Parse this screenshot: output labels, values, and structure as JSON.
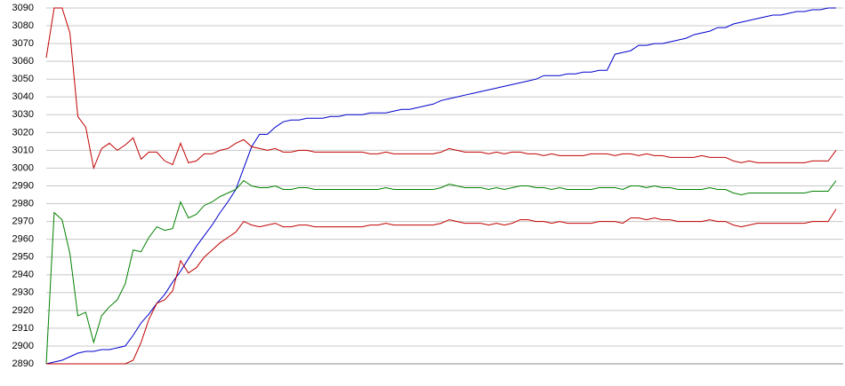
{
  "chart_data": {
    "type": "line",
    "ylim": [
      2890,
      3090
    ],
    "yticks": [
      2890,
      2900,
      2910,
      2920,
      2930,
      2940,
      2950,
      2960,
      2970,
      2980,
      2990,
      3000,
      3010,
      3020,
      3030,
      3040,
      3050,
      3060,
      3070,
      3080,
      3090
    ],
    "grid": true,
    "series": [
      {
        "color": "#0000cc",
        "values": [
          2890,
          2891,
          2892,
          2894,
          2896,
          2897,
          2897,
          2898,
          2898,
          2899,
          2900,
          2906,
          2913,
          2918,
          2924,
          2929,
          2936,
          2942,
          2949,
          2956,
          2962,
          2968,
          2975,
          2981,
          2988,
          3000,
          3012,
          3019,
          3019,
          3023,
          3026,
          3027,
          3027,
          3028,
          3028,
          3028,
          3029,
          3029,
          3030,
          3030,
          3030,
          3031,
          3031,
          3031,
          3032,
          3033,
          3033,
          3034,
          3035,
          3036,
          3038,
          3039,
          3040,
          3041,
          3042,
          3043,
          3044,
          3045,
          3046,
          3047,
          3048,
          3049,
          3050,
          3052,
          3052,
          3052,
          3053,
          3053,
          3054,
          3054,
          3055,
          3055,
          3064,
          3065,
          3066,
          3069,
          3069,
          3070,
          3070,
          3071,
          3072,
          3073,
          3075,
          3076,
          3077,
          3079,
          3079,
          3081,
          3082,
          3083,
          3084,
          3085,
          3086,
          3086,
          3087,
          3088,
          3088,
          3089,
          3089,
          3090,
          3090
        ]
      },
      {
        "color": "#c00000",
        "values": [
          3062,
          3090,
          3090,
          3076,
          3029,
          3023,
          3000,
          3011,
          3014,
          3010,
          3013,
          3017,
          3005,
          3009,
          3009,
          3004,
          3002,
          3014,
          3003,
          3004,
          3008,
          3008,
          3010,
          3011,
          3014,
          3016,
          3012,
          3011,
          3010,
          3011,
          3009,
          3009,
          3010,
          3010,
          3009,
          3009,
          3009,
          3009,
          3009,
          3009,
          3009,
          3008,
          3008,
          3009,
          3008,
          3008,
          3008,
          3008,
          3008,
          3008,
          3009,
          3011,
          3010,
          3009,
          3009,
          3009,
          3008,
          3009,
          3008,
          3009,
          3009,
          3008,
          3008,
          3007,
          3008,
          3007,
          3007,
          3007,
          3007,
          3008,
          3008,
          3008,
          3007,
          3008,
          3008,
          3007,
          3008,
          3007,
          3007,
          3006,
          3006,
          3006,
          3006,
          3007,
          3006,
          3006,
          3006,
          3004,
          3003,
          3004,
          3003,
          3003,
          3003,
          3003,
          3003,
          3003,
          3003,
          3004,
          3004,
          3004,
          3010
        ]
      },
      {
        "color": "#008000",
        "values": [
          2890,
          2975,
          2971,
          2952,
          2917,
          2919,
          2902,
          2917,
          2922,
          2926,
          2935,
          2954,
          2953,
          2961,
          2967,
          2965,
          2966,
          2981,
          2972,
          2974,
          2979,
          2981,
          2984,
          2986,
          2988,
          2993,
          2990,
          2989,
          2989,
          2990,
          2988,
          2988,
          2989,
          2989,
          2988,
          2988,
          2988,
          2988,
          2988,
          2988,
          2988,
          2988,
          2988,
          2989,
          2988,
          2988,
          2988,
          2988,
          2988,
          2988,
          2989,
          2991,
          2990,
          2989,
          2989,
          2989,
          2988,
          2989,
          2988,
          2989,
          2990,
          2990,
          2989,
          2989,
          2988,
          2989,
          2988,
          2988,
          2988,
          2988,
          2989,
          2989,
          2989,
          2988,
          2990,
          2990,
          2989,
          2990,
          2989,
          2989,
          2988,
          2988,
          2988,
          2988,
          2989,
          2988,
          2988,
          2986,
          2985,
          2986,
          2986,
          2986,
          2986,
          2986,
          2986,
          2986,
          2986,
          2987,
          2987,
          2987,
          2993
        ]
      },
      {
        "color": "#c00000",
        "values": [
          2890,
          2890,
          2890,
          2890,
          2890,
          2890,
          2890,
          2890,
          2890,
          2890,
          2890,
          2892,
          2902,
          2915,
          2924,
          2926,
          2931,
          2948,
          2941,
          2944,
          2950,
          2954,
          2958,
          2961,
          2964,
          2970,
          2968,
          2967,
          2968,
          2969,
          2967,
          2967,
          2968,
          2968,
          2967,
          2967,
          2967,
          2967,
          2967,
          2967,
          2967,
          2968,
          2968,
          2969,
          2968,
          2968,
          2968,
          2968,
          2968,
          2968,
          2969,
          2971,
          2970,
          2969,
          2969,
          2969,
          2968,
          2969,
          2968,
          2969,
          2971,
          2971,
          2970,
          2970,
          2969,
          2970,
          2969,
          2969,
          2969,
          2969,
          2970,
          2970,
          2970,
          2969,
          2972,
          2972,
          2971,
          2972,
          2971,
          2971,
          2970,
          2970,
          2970,
          2970,
          2971,
          2970,
          2970,
          2968,
          2967,
          2968,
          2969,
          2969,
          2969,
          2969,
          2969,
          2969,
          2969,
          2970,
          2970,
          2970,
          2977
        ]
      }
    ]
  }
}
